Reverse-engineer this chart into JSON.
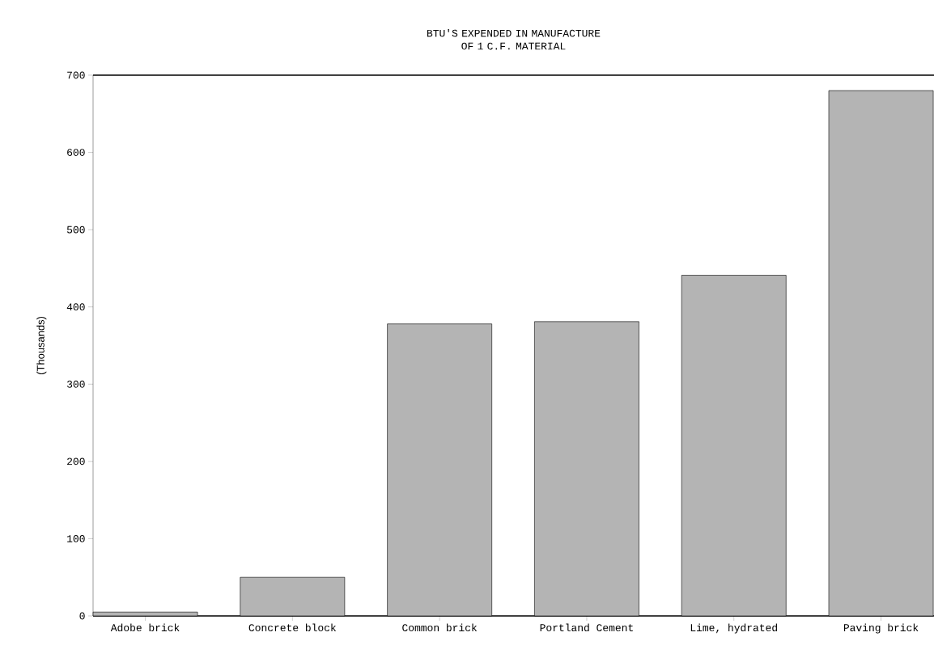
{
  "chart_data": {
    "type": "bar",
    "title": "BTU'S EXPENDED IN MANUFACTURE OF 1 C.F. MATERIAL",
    "ylabel": "(Thousands)",
    "categories": [
      "Adobe brick",
      "Concrete block",
      "Common brick",
      "Portland Cement",
      "Lime, hydrated",
      "Paving brick"
    ],
    "values": [
      5,
      50,
      378,
      381,
      441,
      680
    ],
    "color": "#b4b4b4",
    "ylim": [
      0,
      700
    ],
    "yticks": [
      0,
      100,
      200,
      300,
      400,
      500,
      600,
      700
    ],
    "grid": false
  }
}
